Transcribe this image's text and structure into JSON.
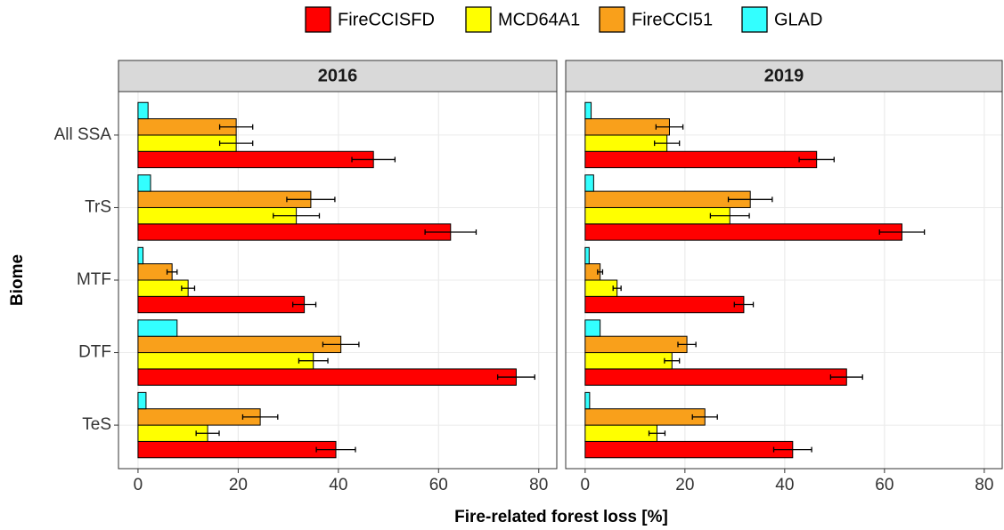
{
  "chart_data": {
    "type": "bar",
    "orientation": "horizontal",
    "xlabel": "Fire-related forest loss [%]",
    "ylabel": "Biome",
    "panels": [
      "2016",
      "2019"
    ],
    "categories": [
      "All SSA",
      "TrS",
      "MTF",
      "DTF",
      "TeS"
    ],
    "xlim": [
      -3.9,
      83.6
    ],
    "xticks": [
      0,
      20,
      40,
      60,
      80
    ],
    "grid": true,
    "legend": "top",
    "series": [
      {
        "name": "FireCCISFD",
        "color": "#ff0000",
        "values": [
          [
            47,
            62.4,
            33.2,
            75.5,
            39.5
          ],
          [
            46.4,
            63.5,
            31.8,
            52.4,
            41.6
          ]
        ],
        "errors": [
          [
            4.3,
            5.1,
            2.3,
            3.7,
            3.9
          ],
          [
            3.5,
            4.5,
            1.9,
            3.2,
            3.8
          ]
        ]
      },
      {
        "name": "MCD64A1",
        "color": "#ffff00",
        "values": [
          [
            19.6,
            31.6,
            10,
            35,
            13.9
          ],
          [
            16.4,
            29,
            6.4,
            17.4,
            14.4
          ]
        ],
        "errors": [
          [
            3.3,
            4.6,
            1.3,
            2.9,
            2.3
          ],
          [
            2.5,
            3.9,
            0.8,
            1.5,
            1.6
          ]
        ]
      },
      {
        "name": "FireCCI51",
        "color": "#f9a01b",
        "values": [
          [
            19.6,
            34.5,
            6.8,
            40.5,
            24.4
          ],
          [
            16.9,
            33.1,
            3,
            20.4,
            24
          ]
        ],
        "errors": [
          [
            3.3,
            4.8,
            1,
            3.6,
            3.5
          ],
          [
            2.7,
            4.4,
            0.5,
            1.8,
            2.5
          ]
        ]
      },
      {
        "name": "GLAD",
        "color": "#33ffff",
        "values": [
          [
            2,
            2.5,
            1,
            7.8,
            1.6
          ],
          [
            1.2,
            1.7,
            0.8,
            3,
            0.9
          ]
        ]
      }
    ]
  }
}
